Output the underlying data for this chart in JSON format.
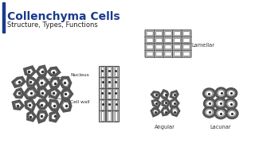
{
  "title": "Collenchyma Cells",
  "subtitle": "Structure, Types, Functions",
  "title_color": "#1a3a8c",
  "subtitle_color": "#222222",
  "accent_color": "#1a3a8c",
  "bg_color": "#ffffff",
  "label_nucleus": "Nucleus",
  "label_cellwall": "Cell wall",
  "label_lamellar": "Lamellar",
  "label_angular": "Angular",
  "label_lacunar": "Lacunar",
  "cell_edge": "#555555",
  "thick_wall_color": "#b0b0b0",
  "wall_fill": "#cccccc",
  "lumen_fill": "#ffffff"
}
